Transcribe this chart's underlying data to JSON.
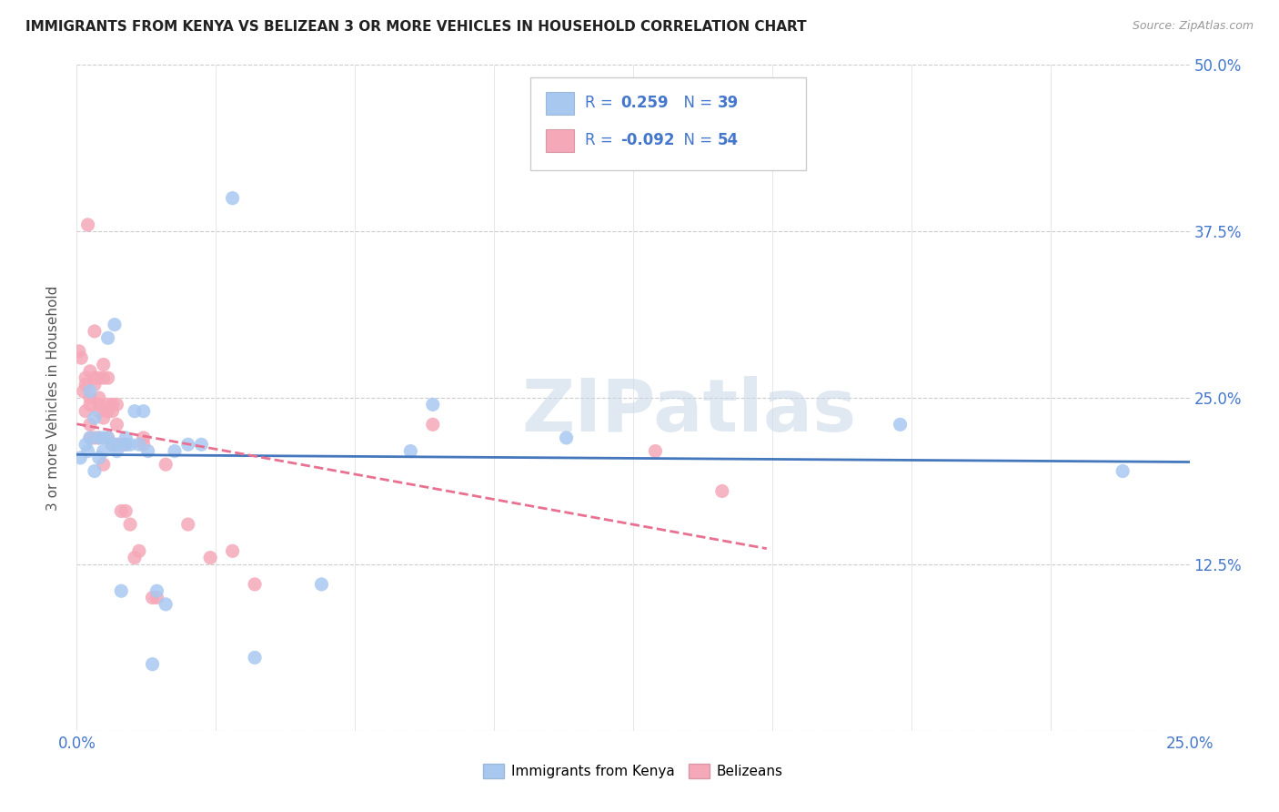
{
  "title": "IMMIGRANTS FROM KENYA VS BELIZEAN 3 OR MORE VEHICLES IN HOUSEHOLD CORRELATION CHART",
  "source": "Source: ZipAtlas.com",
  "ylabel": "3 or more Vehicles in Household",
  "xlim": [
    0.0,
    0.25
  ],
  "ylim": [
    0.0,
    0.5
  ],
  "yticks": [
    0.0,
    0.125,
    0.25,
    0.375,
    0.5
  ],
  "ytick_labels": [
    "",
    "12.5%",
    "25.0%",
    "37.5%",
    "50.0%"
  ],
  "xticks": [
    0.0,
    0.03125,
    0.0625,
    0.09375,
    0.125,
    0.15625,
    0.1875,
    0.21875,
    0.25
  ],
  "legend_kenya_R": "0.259",
  "legend_kenya_N": "39",
  "legend_belizean_R": "-0.092",
  "legend_belizean_N": "54",
  "kenya_color": "#a8c8f0",
  "belizean_color": "#f5a8b8",
  "kenya_line_color": "#4477bb",
  "belizean_line_color": "#e87090",
  "legend_text_color": "#4477cc",
  "background_color": "#ffffff",
  "watermark_text": "ZIPatlas",
  "watermark_color": "#c8d8e8",
  "kenya_points_x": [
    0.0008,
    0.002,
    0.0025,
    0.003,
    0.003,
    0.004,
    0.004,
    0.005,
    0.005,
    0.006,
    0.006,
    0.007,
    0.007,
    0.008,
    0.0085,
    0.009,
    0.009,
    0.01,
    0.011,
    0.011,
    0.012,
    0.013,
    0.014,
    0.015,
    0.016,
    0.017,
    0.018,
    0.02,
    0.022,
    0.025,
    0.028,
    0.035,
    0.04,
    0.075,
    0.08,
    0.11,
    0.185,
    0.235,
    0.055
  ],
  "kenya_points_y": [
    0.205,
    0.215,
    0.21,
    0.22,
    0.255,
    0.195,
    0.235,
    0.205,
    0.22,
    0.22,
    0.21,
    0.22,
    0.295,
    0.215,
    0.305,
    0.21,
    0.215,
    0.105,
    0.22,
    0.215,
    0.215,
    0.24,
    0.215,
    0.24,
    0.21,
    0.05,
    0.105,
    0.095,
    0.21,
    0.215,
    0.215,
    0.4,
    0.055,
    0.21,
    0.245,
    0.22,
    0.23,
    0.195,
    0.11
  ],
  "belizean_points_x": [
    0.0005,
    0.001,
    0.0015,
    0.002,
    0.002,
    0.002,
    0.0025,
    0.003,
    0.003,
    0.003,
    0.003,
    0.003,
    0.004,
    0.004,
    0.004,
    0.004,
    0.005,
    0.005,
    0.005,
    0.005,
    0.005,
    0.006,
    0.006,
    0.006,
    0.006,
    0.007,
    0.007,
    0.007,
    0.007,
    0.008,
    0.008,
    0.008,
    0.009,
    0.009,
    0.009,
    0.01,
    0.01,
    0.011,
    0.011,
    0.012,
    0.013,
    0.014,
    0.015,
    0.015,
    0.017,
    0.018,
    0.02,
    0.025,
    0.03,
    0.035,
    0.04,
    0.08,
    0.13,
    0.145
  ],
  "belizean_points_y": [
    0.285,
    0.28,
    0.255,
    0.24,
    0.265,
    0.26,
    0.38,
    0.23,
    0.25,
    0.245,
    0.22,
    0.27,
    0.22,
    0.265,
    0.26,
    0.3,
    0.22,
    0.24,
    0.245,
    0.25,
    0.265,
    0.2,
    0.235,
    0.265,
    0.275,
    0.22,
    0.24,
    0.265,
    0.245,
    0.24,
    0.245,
    0.215,
    0.215,
    0.23,
    0.245,
    0.215,
    0.165,
    0.215,
    0.165,
    0.155,
    0.13,
    0.135,
    0.22,
    0.215,
    0.1,
    0.1,
    0.2,
    0.155,
    0.13,
    0.135,
    0.11,
    0.23,
    0.21,
    0.18
  ]
}
